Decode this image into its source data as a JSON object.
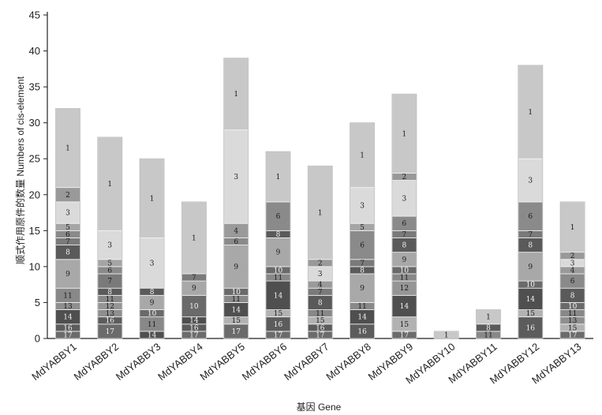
{
  "chart_data": {
    "type": "bar",
    "stacked": true,
    "title": "",
    "xlabel": "基因 Gene",
    "ylabel": "顺式作用原件的数量 Numbers of cis-element",
    "ylim": [
      0,
      45
    ],
    "yticks": [
      0,
      5,
      10,
      15,
      20,
      25,
      30,
      35,
      40,
      45
    ],
    "grid": false,
    "legend": "none",
    "categories": [
      "MdYABBY1",
      "MdYABBY2",
      "MdYABBY3",
      "MdYABBY4",
      "MdYABBY5",
      "MdYABBY6",
      "MdYABBY7",
      "MdYABBY8",
      "MdYABBY9",
      "MdYABBY10",
      "MdYABBY11",
      "MdYABBY12",
      "MdYABBY13"
    ],
    "element_colors": {
      "1": "#c8c8c8",
      "2": "#999999",
      "3": "#dadada",
      "4": "#9a9a9a",
      "5": "#a5a5a5",
      "6": "#8a8a8a",
      "7": "#7a7a7a",
      "8": "#5a5a5a",
      "9": "#a8a8a8",
      "10": "#6a6a6a",
      "11": "#888888",
      "12": "#959595",
      "13": "#8e8e8e",
      "14": "#4f4f4f",
      "15": "#b2b2b2",
      "16": "#5c5c5c",
      "17": "#6b6b6b"
    },
    "bars": [
      {
        "category": "MdYABBY1",
        "total": 32,
        "segments": [
          {
            "element": "17",
            "value": 1
          },
          {
            "element": "16",
            "value": 1
          },
          {
            "element": "14",
            "value": 2
          },
          {
            "element": "13",
            "value": 1
          },
          {
            "element": "11",
            "value": 2
          },
          {
            "element": "9",
            "value": 4
          },
          {
            "element": "8",
            "value": 2
          },
          {
            "element": "7",
            "value": 1
          },
          {
            "element": "6",
            "value": 1
          },
          {
            "element": "5",
            "value": 1
          },
          {
            "element": "3",
            "value": 3
          },
          {
            "element": "2",
            "value": 2
          },
          {
            "element": "1",
            "value": 11
          }
        ]
      },
      {
        "category": "MdYABBY2",
        "total": 28,
        "segments": [
          {
            "element": "17",
            "value": 2
          },
          {
            "element": "16",
            "value": 1
          },
          {
            "element": "13",
            "value": 1
          },
          {
            "element": "12",
            "value": 1
          },
          {
            "element": "11",
            "value": 1
          },
          {
            "element": "8",
            "value": 1
          },
          {
            "element": "7",
            "value": 2
          },
          {
            "element": "6",
            "value": 1
          },
          {
            "element": "5",
            "value": 1
          },
          {
            "element": "3",
            "value": 4
          },
          {
            "element": "1",
            "value": 13
          }
        ]
      },
      {
        "category": "MdYABBY3",
        "total": 25,
        "segments": [
          {
            "element": "14",
            "value": 1
          },
          {
            "element": "11",
            "value": 2
          },
          {
            "element": "10",
            "value": 1
          },
          {
            "element": "9",
            "value": 2
          },
          {
            "element": "8",
            "value": 1
          },
          {
            "element": "3",
            "value": 7
          },
          {
            "element": "1",
            "value": 11
          }
        ]
      },
      {
        "category": "MdYABBY4",
        "total": 19,
        "segments": [
          {
            "element": "17",
            "value": 1
          },
          {
            "element": "16",
            "value": 1
          },
          {
            "element": "14",
            "value": 1
          },
          {
            "element": "10",
            "value": 3
          },
          {
            "element": "9",
            "value": 2
          },
          {
            "element": "7",
            "value": 1
          },
          {
            "element": "1",
            "value": 10
          }
        ]
      },
      {
        "category": "MdYABBY5",
        "total": 39,
        "segments": [
          {
            "element": "17",
            "value": 2
          },
          {
            "element": "15",
            "value": 1
          },
          {
            "element": "14",
            "value": 2
          },
          {
            "element": "11",
            "value": 1
          },
          {
            "element": "10",
            "value": 1
          },
          {
            "element": "9",
            "value": 6
          },
          {
            "element": "6",
            "value": 1
          },
          {
            "element": "4",
            "value": 2
          },
          {
            "element": "3",
            "value": 13
          },
          {
            "element": "1",
            "value": 10
          }
        ]
      },
      {
        "category": "MdYABBY6",
        "total": 26,
        "segments": [
          {
            "element": "17",
            "value": 1
          },
          {
            "element": "16",
            "value": 2
          },
          {
            "element": "15",
            "value": 1
          },
          {
            "element": "14",
            "value": 4
          },
          {
            "element": "11",
            "value": 1
          },
          {
            "element": "10",
            "value": 1
          },
          {
            "element": "9",
            "value": 4
          },
          {
            "element": "8",
            "value": 1
          },
          {
            "element": "6",
            "value": 4
          },
          {
            "element": "1",
            "value": 7
          }
        ]
      },
      {
        "category": "MdYABBY7",
        "total": 24,
        "segments": [
          {
            "element": "17",
            "value": 1
          },
          {
            "element": "16",
            "value": 1
          },
          {
            "element": "15",
            "value": 1
          },
          {
            "element": "11",
            "value": 1
          },
          {
            "element": "8",
            "value": 2
          },
          {
            "element": "7",
            "value": 1
          },
          {
            "element": "4",
            "value": 1
          },
          {
            "element": "3",
            "value": 2
          },
          {
            "element": "2",
            "value": 1
          },
          {
            "element": "1",
            "value": 13
          }
        ]
      },
      {
        "category": "MdYABBY8",
        "total": 30,
        "segments": [
          {
            "element": "16",
            "value": 2
          },
          {
            "element": "14",
            "value": 2
          },
          {
            "element": "11",
            "value": 1
          },
          {
            "element": "9",
            "value": 4
          },
          {
            "element": "8",
            "value": 1
          },
          {
            "element": "7",
            "value": 1
          },
          {
            "element": "6",
            "value": 4
          },
          {
            "element": "5",
            "value": 1
          },
          {
            "element": "3",
            "value": 5
          },
          {
            "element": "1",
            "value": 9
          }
        ]
      },
      {
        "category": "MdYABBY9",
        "total": 34,
        "segments": [
          {
            "element": "17",
            "value": 1
          },
          {
            "element": "15",
            "value": 2
          },
          {
            "element": "14",
            "value": 3
          },
          {
            "element": "12",
            "value": 2
          },
          {
            "element": "11",
            "value": 1
          },
          {
            "element": "10",
            "value": 1
          },
          {
            "element": "9",
            "value": 2
          },
          {
            "element": "8",
            "value": 2
          },
          {
            "element": "7",
            "value": 1
          },
          {
            "element": "6",
            "value": 2
          },
          {
            "element": "3",
            "value": 5
          },
          {
            "element": "2",
            "value": 1
          },
          {
            "element": "1",
            "value": 11
          }
        ]
      },
      {
        "category": "MdYABBY10",
        "total": 1,
        "segments": [
          {
            "element": "1",
            "value": 1
          }
        ]
      },
      {
        "category": "MdYABBY11",
        "total": 4,
        "segments": [
          {
            "element": "11",
            "value": 1
          },
          {
            "element": "8",
            "value": 1
          },
          {
            "element": "1",
            "value": 2
          }
        ]
      },
      {
        "category": "MdYABBY12",
        "total": 38,
        "segments": [
          {
            "element": "16",
            "value": 3
          },
          {
            "element": "15",
            "value": 1
          },
          {
            "element": "14",
            "value": 3
          },
          {
            "element": "10",
            "value": 1
          },
          {
            "element": "9",
            "value": 4
          },
          {
            "element": "8",
            "value": 2
          },
          {
            "element": "7",
            "value": 1
          },
          {
            "element": "6",
            "value": 4
          },
          {
            "element": "3",
            "value": 6
          },
          {
            "element": "1",
            "value": 13
          }
        ]
      },
      {
        "category": "MdYABBY13",
        "total": 19,
        "segments": [
          {
            "element": "17",
            "value": 1
          },
          {
            "element": "15",
            "value": 1
          },
          {
            "element": "13",
            "value": 1
          },
          {
            "element": "11",
            "value": 1
          },
          {
            "element": "10",
            "value": 1
          },
          {
            "element": "8",
            "value": 2
          },
          {
            "element": "6",
            "value": 2
          },
          {
            "element": "4",
            "value": 1
          },
          {
            "element": "3",
            "value": 1
          },
          {
            "element": "2",
            "value": 1
          },
          {
            "element": "1",
            "value": 7
          }
        ]
      }
    ]
  }
}
